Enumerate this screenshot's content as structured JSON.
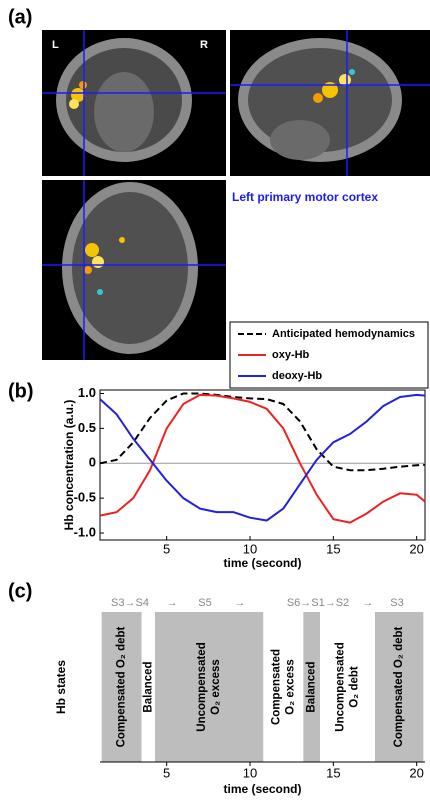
{
  "figure": {
    "panel_labels": [
      "(a)",
      "(b)",
      "(c)"
    ],
    "image_labels": [
      "L",
      "R"
    ],
    "caption": "Left primary motor cortex"
  },
  "chart_data": [
    {
      "type": "line",
      "xlabel": "time (second)",
      "ylabel": "Hb concentration (a.u.)",
      "xlim": [
        1,
        20.5
      ],
      "xticks": [
        5,
        10,
        15,
        20
      ],
      "ylim": [
        -1.1,
        1.05
      ],
      "yticks": [
        {
          "value": 1,
          "label": "1.0"
        },
        0.5,
        0,
        -0.5,
        {
          "value": -1,
          "label": "-1.0"
        }
      ],
      "x": [
        1,
        2,
        3,
        4,
        5,
        6,
        7,
        8,
        9,
        10,
        11,
        12,
        13,
        14,
        15,
        16,
        17,
        18,
        19,
        20,
        20.5
      ],
      "legend": "upper right",
      "series": [
        {
          "name": "Anticipated hemodynamics",
          "color": "#000000",
          "dashed": true,
          "values": [
            0,
            0.05,
            0.3,
            0.65,
            0.9,
            1.0,
            1.0,
            0.98,
            0.95,
            0.93,
            0.92,
            0.85,
            0.6,
            0.2,
            -0.05,
            -0.1,
            -0.1,
            -0.08,
            -0.05,
            -0.03,
            -0.02
          ]
        },
        {
          "name": "oxy-Hb",
          "color": "#ee2222",
          "values": [
            -0.75,
            -0.7,
            -0.5,
            -0.1,
            0.5,
            0.85,
            0.98,
            0.97,
            0.93,
            0.88,
            0.78,
            0.5,
            0.0,
            -0.45,
            -0.8,
            -0.85,
            -0.72,
            -0.55,
            -0.43,
            -0.45,
            -0.55
          ]
        },
        {
          "name": "deoxy-Hb",
          "color": "#2222dd",
          "values": [
            0.92,
            0.7,
            0.35,
            0.05,
            -0.25,
            -0.5,
            -0.65,
            -0.7,
            -0.7,
            -0.78,
            -0.82,
            -0.65,
            -0.3,
            0.05,
            0.3,
            0.42,
            0.6,
            0.82,
            0.95,
            0.98,
            0.97
          ]
        }
      ]
    },
    {
      "type": "timeline",
      "xlabel": "time (second)",
      "ylabel": "Hb states",
      "xlim": [
        1,
        20.5
      ],
      "xticks": [
        5,
        10,
        15,
        20
      ],
      "transitions": [
        "S3→S4",
        "→",
        "S5",
        "→",
        "S6→S1→S2",
        "→",
        "S3"
      ],
      "segments": [
        {
          "label": [
            "Compensated O₂ debt"
          ],
          "start": 1.1,
          "end": 3.5,
          "shaded": true
        },
        {
          "label": [
            "Balanced"
          ],
          "start": 3.5,
          "end": 4.3,
          "shaded": false
        },
        {
          "label": [
            "Uncompensated",
            "O₂ excess"
          ],
          "start": 4.3,
          "end": 10.8,
          "shaded": true
        },
        {
          "label": [
            "Compensated",
            "O₂ excess"
          ],
          "start": 10.8,
          "end": 13.2,
          "shaded": false
        },
        {
          "label": [
            "Balanced"
          ],
          "start": 13.2,
          "end": 14.2,
          "shaded": true
        },
        {
          "label": [
            "Uncompensated",
            "O₂ debt"
          ],
          "start": 14.2,
          "end": 17.5,
          "shaded": false
        },
        {
          "label": [
            "Compensated O₂ debt"
          ],
          "start": 17.5,
          "end": 20.4,
          "shaded": true
        }
      ]
    }
  ]
}
